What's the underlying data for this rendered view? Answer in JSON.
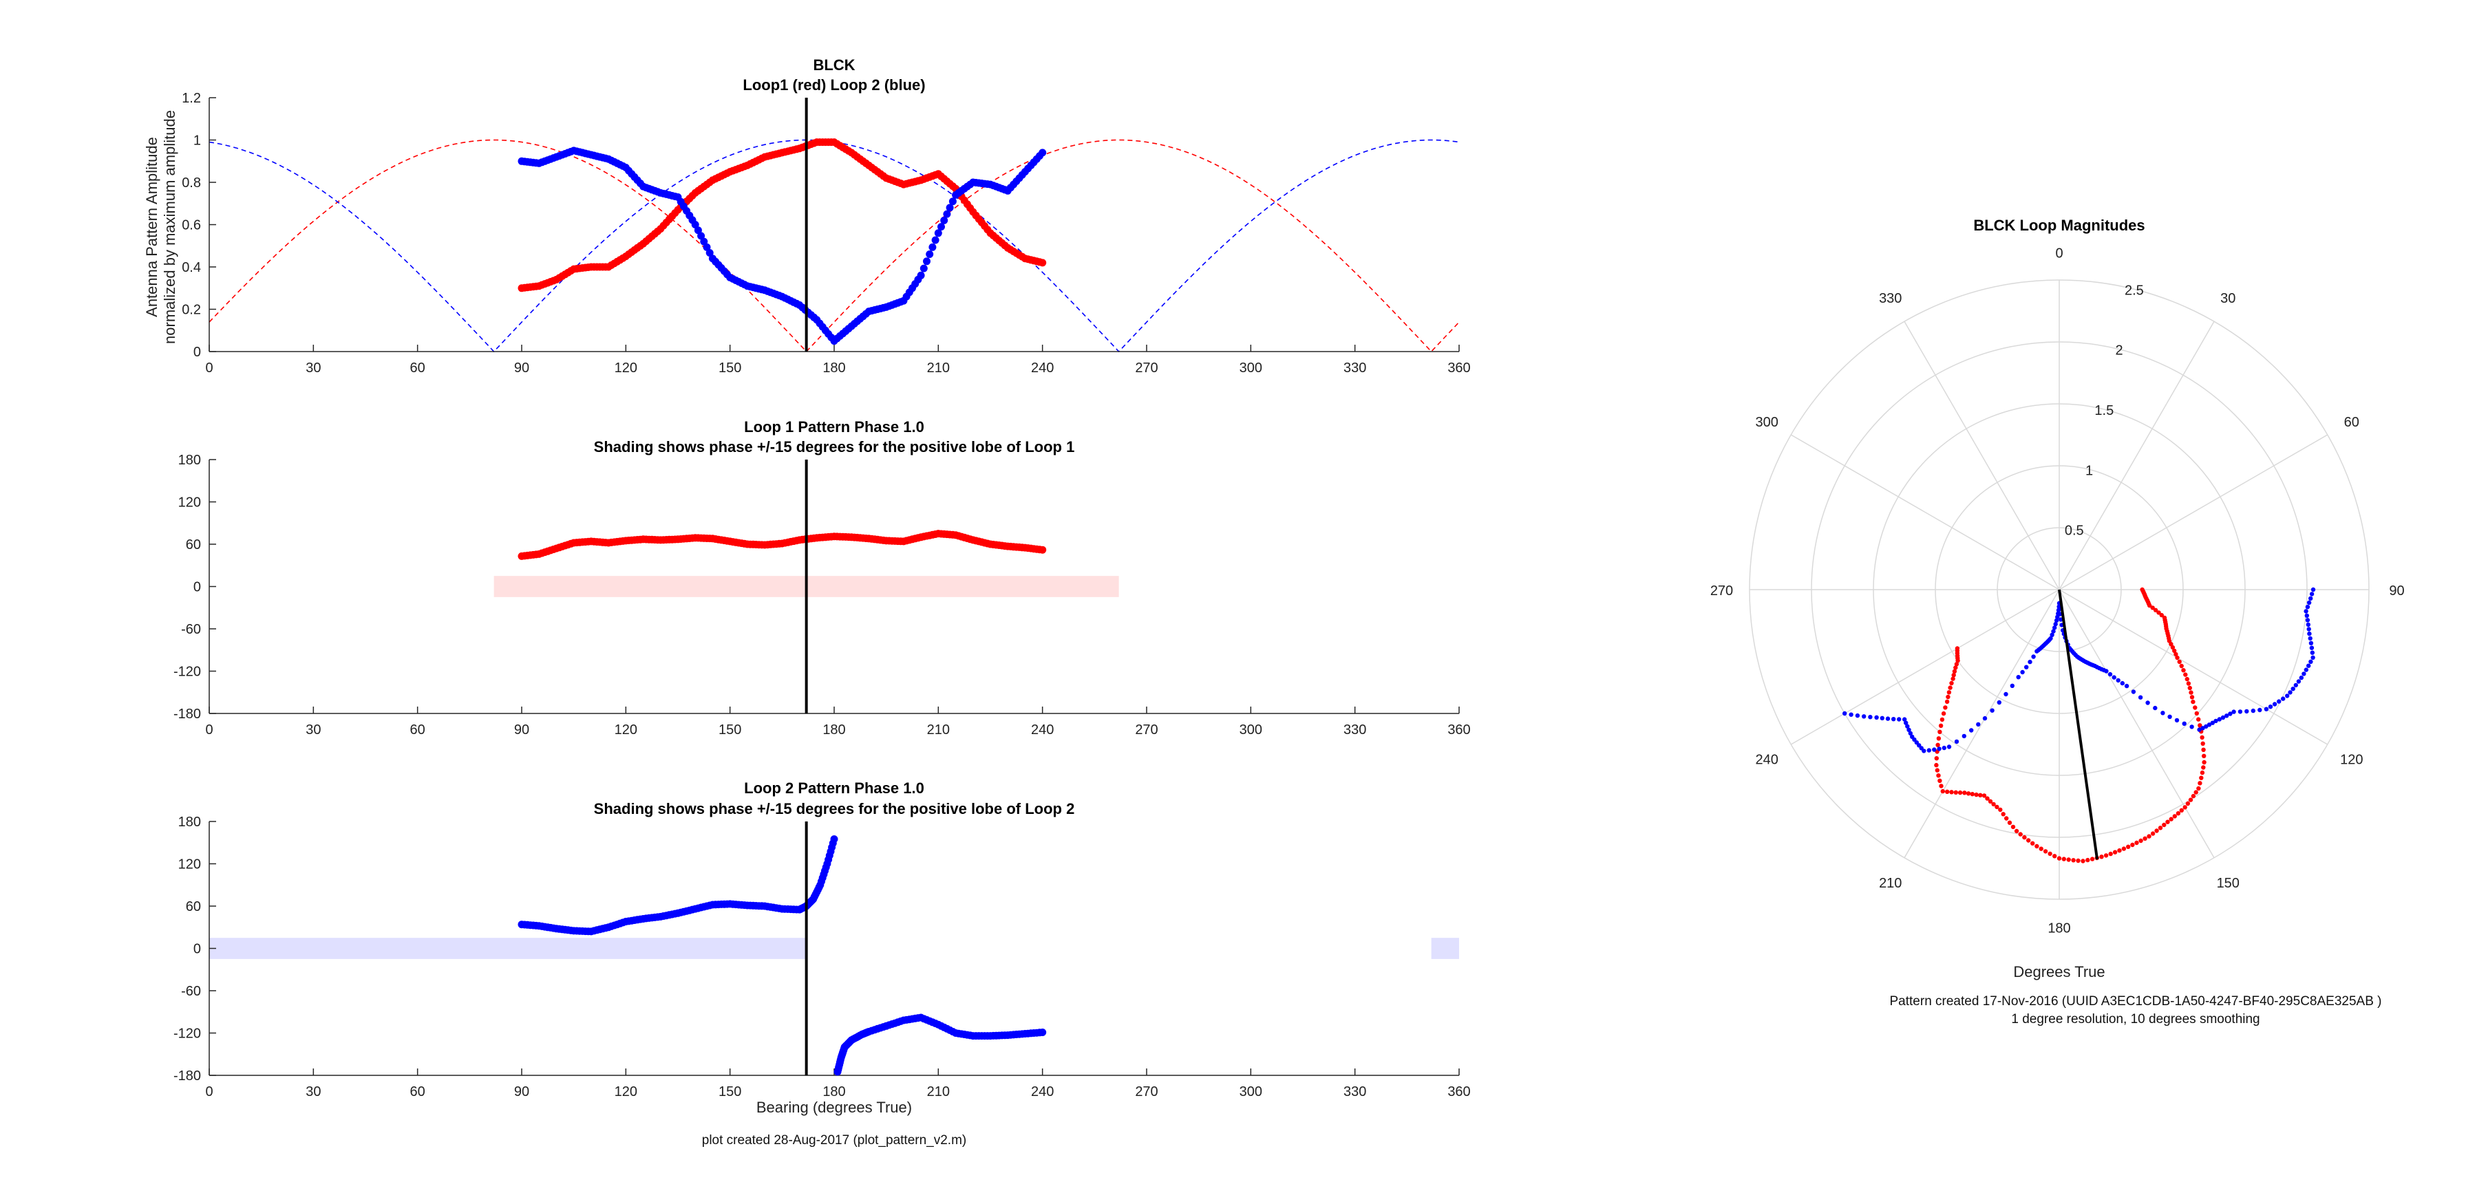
{
  "figure": {
    "footer_left": "plot created 28-Aug-2017 (plot_pattern_v2.m)",
    "footer_right_line1": "Pattern created 17-Nov-2016 (UUID A3EC1CDB-1A50-4247-BF40-295C8AE325AB )",
    "footer_right_line2": "1 degree resolution, 10 degrees smoothing"
  },
  "colors": {
    "loop1": "#ff0000",
    "loop2": "#0000ff",
    "bearing_line": "#000000",
    "loop1_shade": "#ffe0e0",
    "loop2_shade": "#e0e0ff",
    "polar_grid": "#d9d9d9"
  },
  "chart_data": [
    {
      "id": "amplitude",
      "type": "scatter",
      "title": "BLCK",
      "subtitle": "Loop1 (red) Loop 2 (blue)",
      "xlabel": "",
      "ylabel": "Antenna Pattern Amplitude",
      "ylabel2": "normalized by maximum amplitude",
      "xlim": [
        0,
        360
      ],
      "ylim": [
        0,
        1.2
      ],
      "xticks": [
        "0",
        "30",
        "60",
        "90",
        "120",
        "150",
        "180",
        "210",
        "240",
        "270",
        "300",
        "330",
        "360"
      ],
      "yticks": [
        "0",
        "0.2",
        "0.4",
        "0.6",
        "0.8",
        "1",
        "1.2"
      ],
      "bearing_line_x": 172,
      "ideal_curves": [
        {
          "name": "Loop1 ideal",
          "formula": "abs(cos(bearing-82))",
          "color": "loop1",
          "style": "dashed"
        },
        {
          "name": "Loop2 ideal",
          "formula": "abs(sin(bearing-82))",
          "color": "loop2",
          "style": "dashed"
        }
      ],
      "series": [
        {
          "name": "Loop1",
          "color": "loop1",
          "x": [
            90,
            95,
            100,
            105,
            110,
            115,
            120,
            125,
            130,
            135,
            140,
            145,
            150,
            155,
            160,
            165,
            170,
            175,
            180,
            185,
            190,
            195,
            200,
            205,
            210,
            215,
            220,
            225,
            230,
            235,
            240
          ],
          "y": [
            0.3,
            0.31,
            0.34,
            0.39,
            0.4,
            0.4,
            0.45,
            0.51,
            0.58,
            0.67,
            0.75,
            0.81,
            0.85,
            0.88,
            0.92,
            0.94,
            0.96,
            0.99,
            0.99,
            0.94,
            0.88,
            0.82,
            0.79,
            0.81,
            0.84,
            0.77,
            0.66,
            0.56,
            0.49,
            0.44,
            0.42
          ]
        },
        {
          "name": "Loop2",
          "color": "loop2",
          "x": [
            90,
            95,
            100,
            105,
            110,
            115,
            120,
            125,
            130,
            135,
            140,
            145,
            150,
            155,
            160,
            165,
            170,
            175,
            180,
            185,
            190,
            195,
            200,
            205,
            210,
            215,
            220,
            225,
            230,
            235,
            240
          ],
          "y": [
            0.9,
            0.89,
            0.92,
            0.95,
            0.93,
            0.91,
            0.87,
            0.78,
            0.75,
            0.73,
            0.6,
            0.44,
            0.35,
            0.31,
            0.29,
            0.26,
            0.22,
            0.15,
            0.05,
            0.12,
            0.19,
            0.21,
            0.24,
            0.36,
            0.56,
            0.74,
            0.8,
            0.79,
            0.76,
            0.85,
            0.94
          ]
        }
      ]
    },
    {
      "id": "phase1",
      "type": "scatter",
      "title": "Loop 1 Pattern Phase 1.0",
      "subtitle": "Shading shows phase +/-15 degrees for the positive lobe of Loop 1",
      "xlabel": "",
      "xlim": [
        0,
        360
      ],
      "ylim": [
        -180,
        180
      ],
      "xticks": [
        "0",
        "30",
        "60",
        "90",
        "120",
        "150",
        "180",
        "210",
        "240",
        "270",
        "300",
        "330",
        "360"
      ],
      "yticks": [
        "-180",
        "-120",
        "-60",
        "0",
        "60",
        "120",
        "180"
      ],
      "bearing_line_x": 172,
      "shading": [
        {
          "x": [
            82,
            262
          ],
          "y": [
            -15,
            15
          ],
          "color": "loop1_shade"
        }
      ],
      "series": [
        {
          "name": "Loop1",
          "color": "loop1",
          "x": [
            90,
            95,
            100,
            105,
            110,
            115,
            120,
            125,
            130,
            135,
            140,
            145,
            150,
            155,
            160,
            165,
            170,
            175,
            180,
            185,
            190,
            195,
            200,
            205,
            210,
            215,
            220,
            225,
            230,
            235,
            240
          ],
          "y": [
            43,
            46,
            54,
            62,
            64,
            62,
            65,
            67,
            66,
            67,
            69,
            68,
            64,
            60,
            59,
            61,
            66,
            69,
            71,
            70,
            68,
            65,
            64,
            70,
            75,
            73,
            66,
            60,
            57,
            55,
            52
          ]
        }
      ]
    },
    {
      "id": "phase2",
      "type": "scatter",
      "title": "Loop 2 Pattern Phase 1.0",
      "subtitle": "Shading shows phase +/-15 degrees for the positive lobe of Loop 2",
      "xlabel": "Bearing (degrees True)",
      "xlim": [
        0,
        360
      ],
      "ylim": [
        -180,
        180
      ],
      "xticks": [
        "0",
        "30",
        "60",
        "90",
        "120",
        "150",
        "180",
        "210",
        "240",
        "270",
        "300",
        "330",
        "360"
      ],
      "yticks": [
        "-180",
        "-120",
        "-60",
        "0",
        "60",
        "120",
        "180"
      ],
      "bearing_line_x": 172,
      "shading": [
        {
          "x": [
            0,
            172
          ],
          "y": [
            -15,
            15
          ],
          "color": "loop2_shade"
        },
        {
          "x": [
            352,
            360
          ],
          "y": [
            -15,
            15
          ],
          "color": "loop2_shade"
        }
      ],
      "series": [
        {
          "name": "Loop2",
          "color": "loop2",
          "x": [
            90,
            95,
            100,
            105,
            110,
            115,
            120,
            125,
            130,
            135,
            140,
            145,
            150,
            155,
            160,
            165,
            170,
            172,
            174,
            176,
            178,
            180,
            181,
            182,
            183,
            185,
            188,
            190,
            195,
            200,
            205,
            210,
            215,
            220,
            225,
            230,
            235,
            240
          ],
          "y": [
            34,
            32,
            28,
            25,
            24,
            30,
            38,
            42,
            45,
            50,
            56,
            62,
            63,
            61,
            60,
            56,
            55,
            60,
            70,
            90,
            120,
            155,
            -175,
            -155,
            -140,
            -130,
            -122,
            -118,
            -110,
            -102,
            -98,
            -108,
            -120,
            -124,
            -124,
            -123,
            -121,
            -119
          ]
        }
      ]
    },
    {
      "id": "polar",
      "type": "scatter",
      "title": "BLCK Loop Magnitudes",
      "xlabel": "Degrees True",
      "r_lim": [
        0,
        2.5
      ],
      "r_ticks": [
        "0.5",
        "1",
        "1.5",
        "2",
        "2.5"
      ],
      "theta_ticks": [
        "0",
        "30",
        "60",
        "90",
        "120",
        "150",
        "180",
        "210",
        "240",
        "270",
        "300",
        "330"
      ],
      "bearing_line": {
        "theta": 172,
        "r": 2.2
      },
      "series": [
        {
          "name": "Loop1",
          "color": "loop1",
          "theta": [
            90,
            95,
            100,
            105,
            110,
            115,
            120,
            125,
            130,
            135,
            140,
            145,
            150,
            155,
            160,
            165,
            170,
            175,
            180,
            185,
            190,
            195,
            200,
            205,
            210,
            215,
            220,
            225,
            230,
            235,
            240
          ],
          "r": [
            0.67,
            0.7,
            0.74,
            0.88,
            0.92,
            0.98,
            1.1,
            1.26,
            1.41,
            1.62,
            1.82,
            1.96,
            2.03,
            2.07,
            2.12,
            2.15,
            2.18,
            2.2,
            2.17,
            2.08,
            1.98,
            1.84,
            1.77,
            1.81,
            1.88,
            1.73,
            1.5,
            1.28,
            1.12,
            1.0,
            0.95
          ]
        },
        {
          "name": "Loop2",
          "color": "loop2",
          "theta": [
            90,
            95,
            100,
            105,
            110,
            115,
            120,
            125,
            130,
            135,
            140,
            145,
            150,
            155,
            160,
            165,
            170,
            175,
            180,
            185,
            190,
            195,
            200,
            205,
            210,
            215,
            220,
            225,
            230,
            235,
            240
          ],
          "r": [
            2.05,
            2.0,
            2.05,
            2.12,
            2.08,
            2.03,
            1.93,
            1.72,
            1.65,
            1.6,
            1.3,
            0.95,
            0.76,
            0.68,
            0.62,
            0.56,
            0.48,
            0.33,
            0.11,
            0.25,
            0.4,
            0.46,
            0.53,
            0.78,
            1.2,
            1.55,
            1.7,
            1.68,
            1.63,
            1.8,
            2.0
          ]
        }
      ]
    }
  ]
}
